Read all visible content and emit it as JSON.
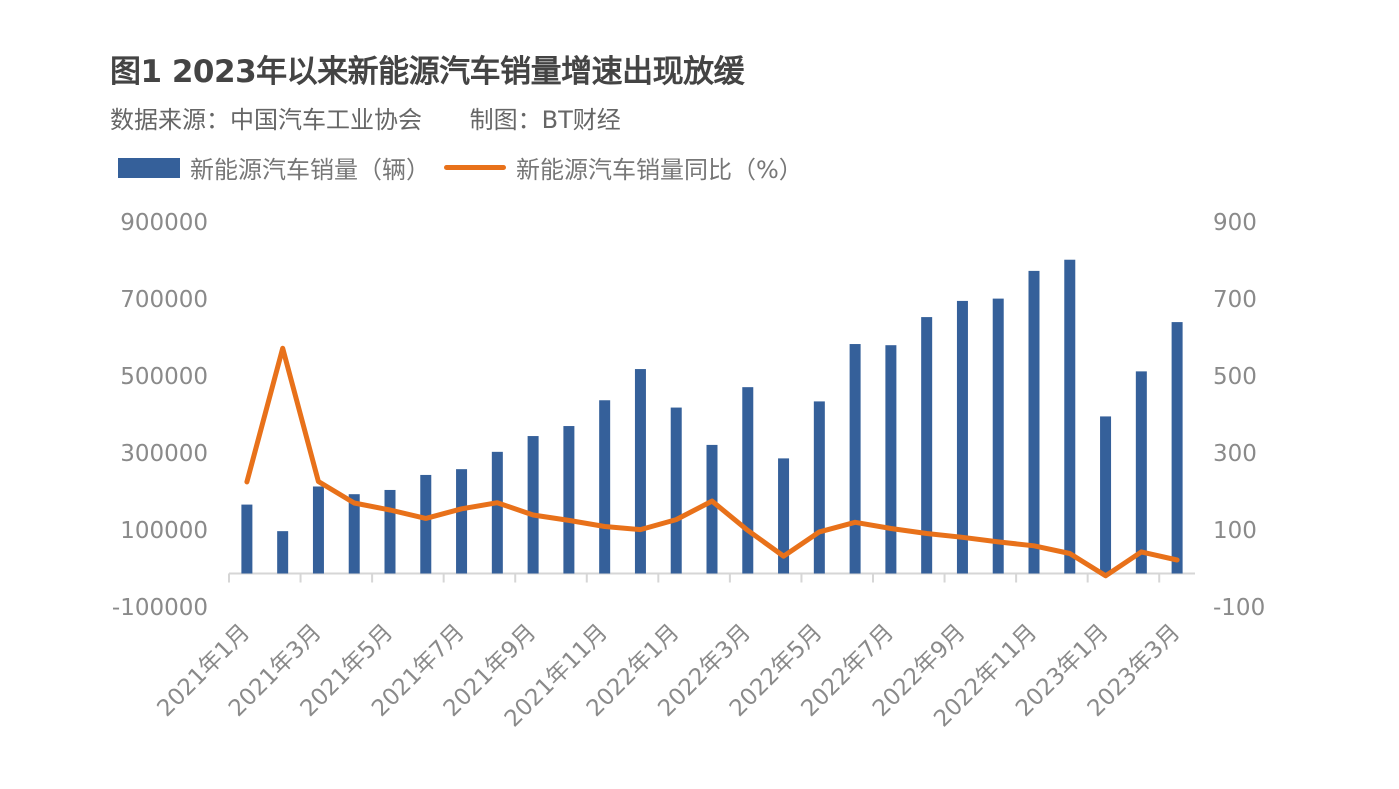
{
  "chart_data": {
    "type": "bar+line",
    "title": "图1 2023年以来新能源汽车销量增速出现放缓",
    "source": "数据来源：中国汽车工业协会",
    "credit": "制图：BT财经",
    "categories": [
      "2021年1月",
      "2021年2月",
      "2021年3月",
      "2021年4月",
      "2021年5月",
      "2021年6月",
      "2021年7月",
      "2021年8月",
      "2021年9月",
      "2021年10月",
      "2021年11月",
      "2021年12月",
      "2022年1月",
      "2022年2月",
      "2022年3月",
      "2022年4月",
      "2022年5月",
      "2022年6月",
      "2022年7月",
      "2022年8月",
      "2022年9月",
      "2022年10月",
      "2022年11月",
      "2022年12月",
      "2023年1月",
      "2023年2月",
      "2023年3月"
    ],
    "x_tick_labels": [
      "2021年1月",
      "2021年3月",
      "2021年5月",
      "2021年7月",
      "2021年9月",
      "2021年11月",
      "2022年1月",
      "2022年3月",
      "2022年5月",
      "2022年7月",
      "2022年9月",
      "2022年11月",
      "2023年1月",
      "2023年3月"
    ],
    "series": [
      {
        "name": "新能源汽车销量（辆）",
        "type": "bar",
        "axis": "left",
        "color": "#35609a",
        "values": [
          179000,
          110000,
          226000,
          206000,
          217000,
          256000,
          271000,
          316000,
          357000,
          383000,
          450000,
          531000,
          431000,
          334000,
          484000,
          299000,
          447000,
          596000,
          593000,
          666000,
          708000,
          714000,
          786000,
          815000,
          408000,
          525000,
          653000
        ]
      },
      {
        "name": "新能源汽车销量同比（%）",
        "type": "line",
        "axis": "right",
        "color": "#e8711a",
        "values": [
          238,
          585,
          239,
          183,
          165,
          143,
          168,
          184,
          152,
          138,
          122,
          114,
          140,
          188,
          112,
          45,
          108,
          133,
          117,
          104,
          94,
          82,
          72,
          52,
          -6,
          56,
          35
        ]
      }
    ],
    "y_left": {
      "range": [
        -100000,
        900000
      ],
      "tick_labels": [
        "900000",
        "700000",
        "500000",
        "300000",
        "100000",
        "-100000"
      ]
    },
    "y_right": {
      "range": [
        -100,
        900
      ],
      "tick_labels": [
        "900",
        "700",
        "500",
        "300",
        "100",
        "-100"
      ]
    },
    "grid": false,
    "legend_position": "top-left"
  }
}
